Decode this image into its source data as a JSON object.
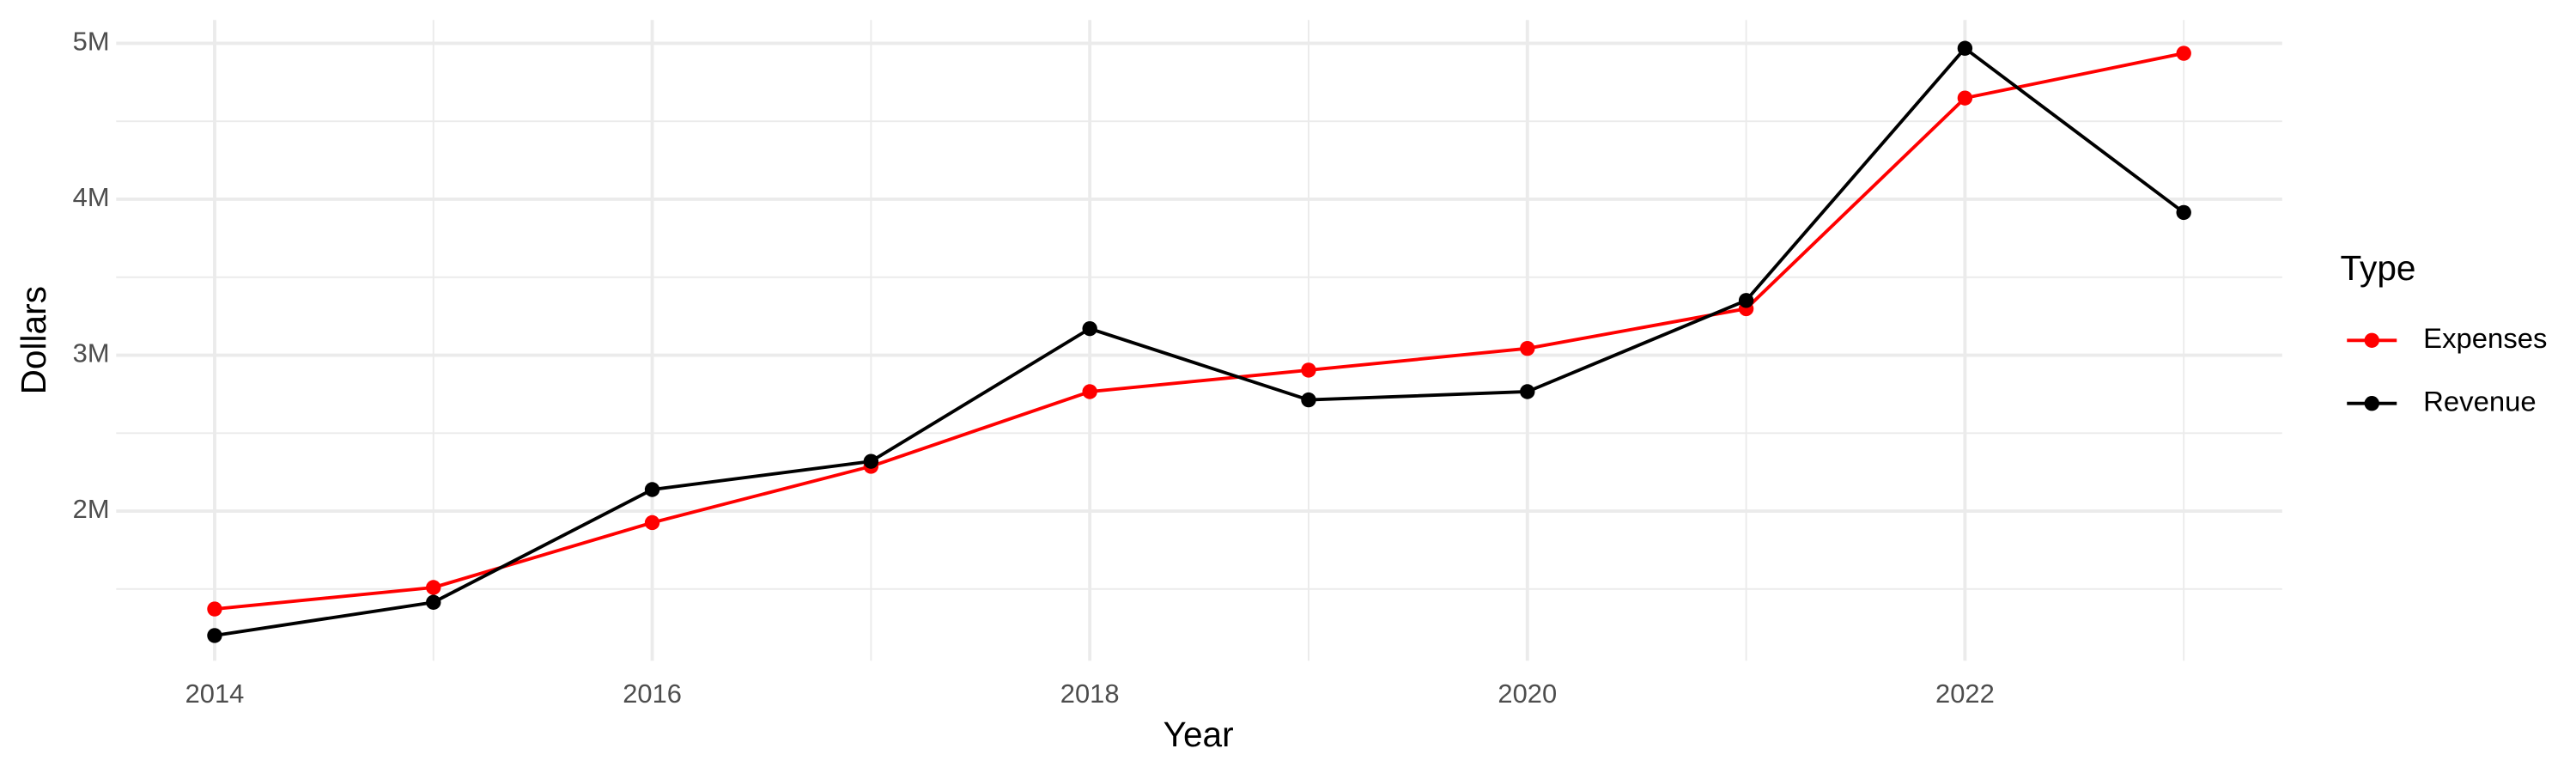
{
  "chart_data": {
    "type": "line",
    "x_label": "Year",
    "y_label": "Dollars",
    "x": [
      2014,
      2015,
      2016,
      2017,
      2018,
      2019,
      2020,
      2021,
      2022,
      2023
    ],
    "series": [
      {
        "name": "Expenses",
        "color": "#ff0000",
        "values": [
          1372000,
          1510000,
          1926000,
          2287000,
          2766000,
          2904000,
          3043000,
          3298000,
          4649000,
          4936000
        ]
      },
      {
        "name": "Revenue",
        "color": "#000000",
        "values": [
          1202000,
          1415000,
          2138000,
          2319000,
          3170000,
          2713000,
          2766000,
          3351000,
          4968000,
          3915000
        ]
      }
    ],
    "xlim": [
      2013.55,
      2023.45
    ],
    "xticks": [
      2014,
      2016,
      2018,
      2020,
      2022
    ],
    "ylim": [
      1040000,
      5150000
    ],
    "yticks": [
      {
        "value": 2000000,
        "label": "2M"
      },
      {
        "value": 3000000,
        "label": "3M"
      },
      {
        "value": 4000000,
        "label": "4M"
      },
      {
        "value": 5000000,
        "label": "5M"
      }
    ],
    "grid": true,
    "legend_title": "Type",
    "legend_position": "right"
  }
}
